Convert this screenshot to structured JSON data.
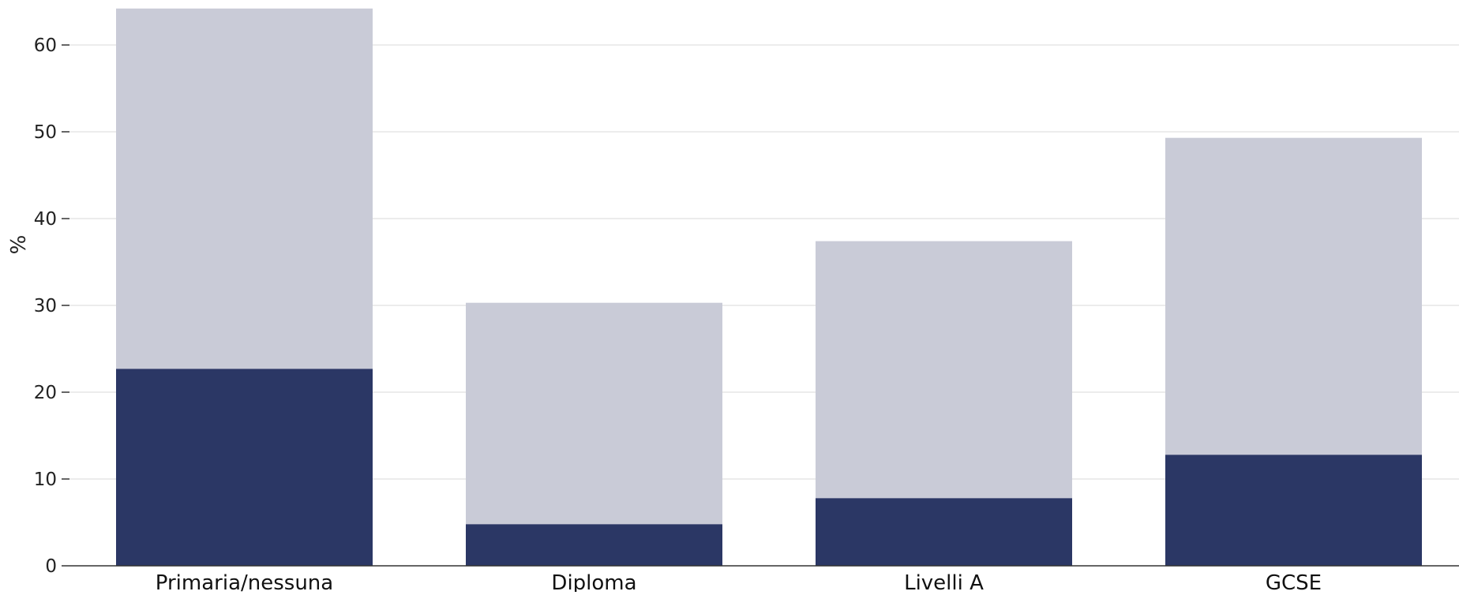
{
  "chart_data": {
    "type": "bar",
    "stacked": true,
    "title": "",
    "xlabel": "",
    "ylabel": "%",
    "ylim": [
      0,
      65
    ],
    "yticks": [
      0,
      10,
      20,
      30,
      40,
      50,
      60
    ],
    "grid": true,
    "legend": "none",
    "categories": [
      "Primaria/nessuna",
      "Diploma",
      "Livelli A",
      "GCSE"
    ],
    "series": [
      {
        "color": "#2b3765",
        "values": [
          22.7,
          4.8,
          7.8,
          12.8
        ]
      },
      {
        "color": "#c9cbd7",
        "values": [
          41.5,
          25.5,
          29.6,
          36.5
        ]
      }
    ],
    "totals": [
      64.2,
      30.3,
      37.4,
      49.3
    ]
  }
}
